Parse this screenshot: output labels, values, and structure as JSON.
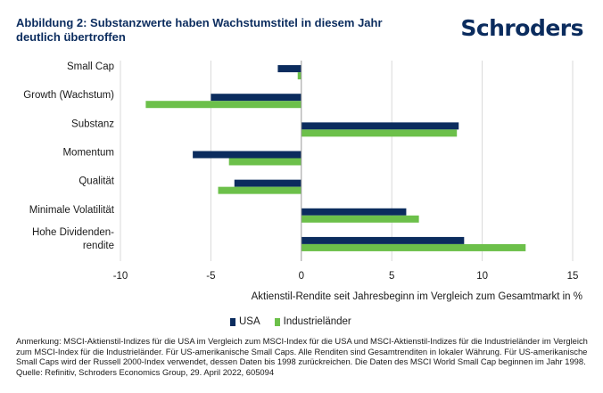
{
  "header": {
    "title": "Abbildung 2: Substanzwerte haben Wachstumstitel in diesem Jahr deutlich übertroffen",
    "logo": "Schroders"
  },
  "chart_data": {
    "type": "bar",
    "orientation": "horizontal",
    "categories": [
      "Small Cap",
      "Growth (Wachstum)",
      "Substanz",
      "Momentum",
      "Qualität",
      "Minimale Volatilität",
      "Hohe Dividenden-\nrendite"
    ],
    "series": [
      {
        "name": "USA",
        "color": "#0b2c5e",
        "values": [
          -1.3,
          -5.0,
          8.7,
          -6.0,
          -3.7,
          5.8,
          9.0
        ]
      },
      {
        "name": "Industrieländer",
        "color": "#6cc04a",
        "values": [
          -0.2,
          -8.6,
          8.6,
          -4.0,
          -4.6,
          6.5,
          12.4
        ]
      }
    ],
    "xlim": [
      -10,
      15
    ],
    "xticks": [
      "-10",
      "-5",
      "0",
      "5",
      "10",
      "15"
    ],
    "xtick_values": [
      -10,
      -5,
      0,
      5,
      10,
      15
    ],
    "xlabel": "Aktienstil-Rendite seit Jahresbeginn im Vergleich zum Gesamtmarkt in %",
    "grid": "vertical",
    "legend": "bottom-center"
  },
  "footnote": "Anmerkung: MSCI-Aktienstil-Indizes für die USA im Vergleich zum MSCI-Index für die USA und MSCI-Aktienstil-Indizes für die Industrieländer im Vergleich zum MSCI-Index für die Industrieländer. Für US-amerikanische Small Caps. Alle Renditen sind Gesamtrenditen in lokaler Währung. Für US-amerikanische Small Caps wird der Russell 2000-Index verwendet, dessen Daten bis 1998 zurückreichen. Die Daten des MSCI World Small Cap beginnen im Jahr 1998. Quelle: Refinitiv, Schroders Economics Group, 29. April 2022, 605094"
}
